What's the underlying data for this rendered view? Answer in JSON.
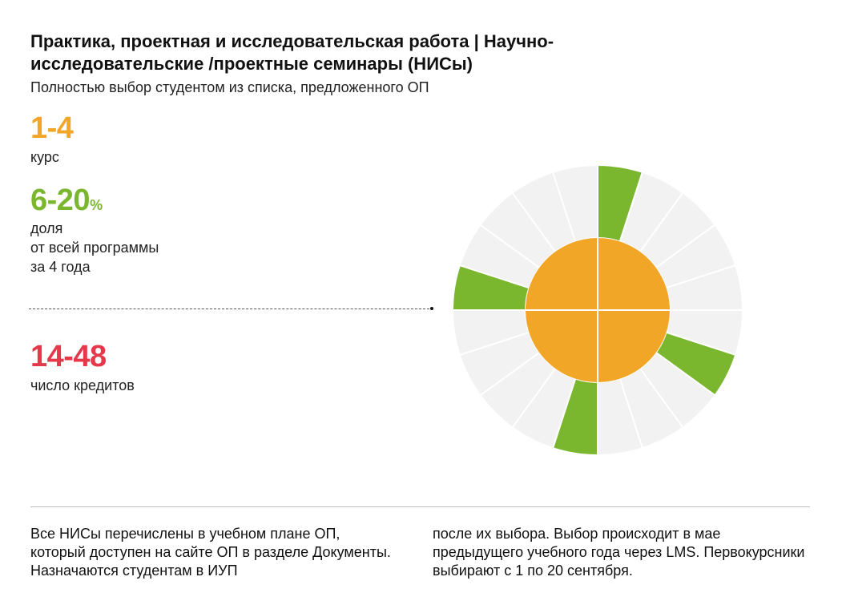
{
  "header": {
    "title": "Практика, проектная и исследовательская работа | Научно-исследовательские /проектные семинары (НИСы)",
    "subtitle": "Полностью выбор студентом из списка, предложенного ОП"
  },
  "stats": {
    "course": {
      "value": "1-4",
      "label": "курс"
    },
    "share": {
      "value": "6-20",
      "unit": "%",
      "label_lines": [
        "доля",
        "от всей программы",
        "за 4 года"
      ]
    },
    "credits": {
      "value": "14-48",
      "label": "число кредитов"
    }
  },
  "notes": {
    "column_1": "Все НИСы перечислены в учебном плане ОП, который  доступен на сайте ОП в разделе Документы. Назначаются студентам в ИУП",
    "column_2": "после их выбора. Выбор происходит в мае предыдущего учебного года через LMS. Первокурсники выбирают с 1 по 20 сентября."
  },
  "colors": {
    "orange": "#f2a628",
    "green": "#7ab72f",
    "red": "#e5384a",
    "segment_bg": "#f2f2f2"
  },
  "chart_data": {
    "type": "radial",
    "inner_quarters": 4,
    "segments": 20,
    "highlighted_segment_indices": [
      0,
      6,
      10,
      15
    ],
    "highlight_color": "#7ab72f",
    "inner_color": "#f2a628"
  }
}
